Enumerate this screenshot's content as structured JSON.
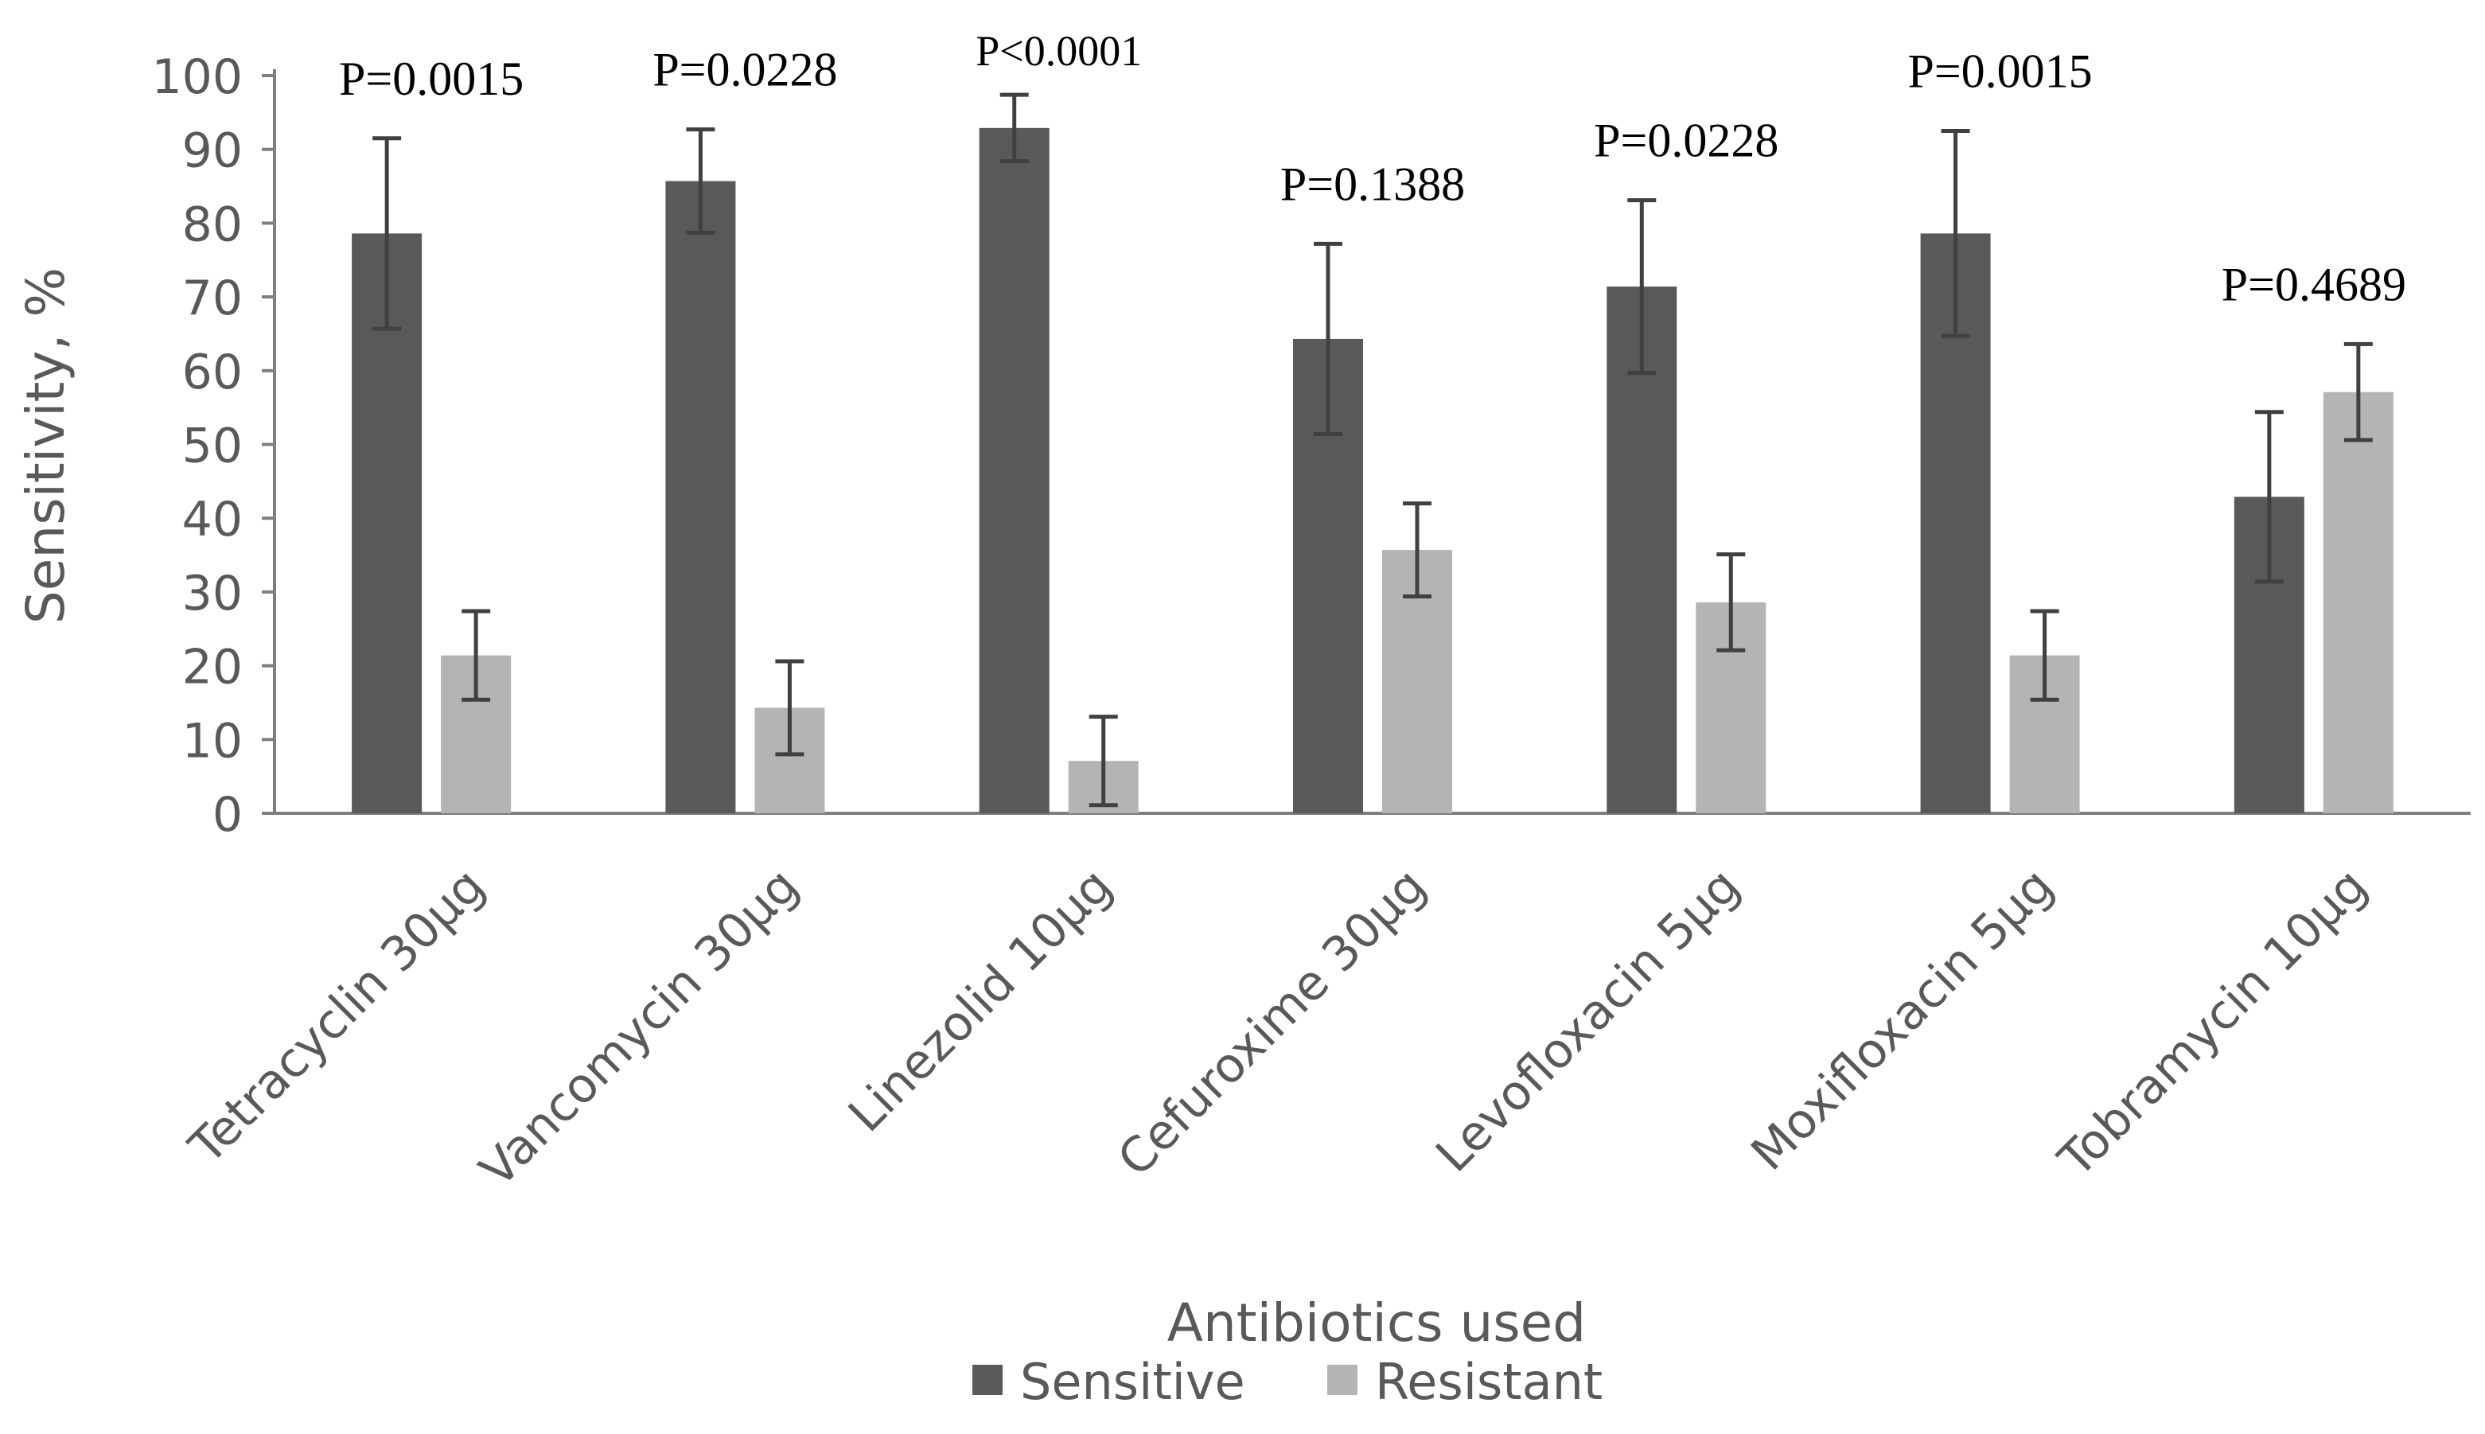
{
  "chart_data": {
    "type": "bar",
    "title": "",
    "xlabel": "Antibiotics used",
    "ylabel": "Sensitivity, %",
    "ylim": [
      0,
      100
    ],
    "yticks": [
      0,
      10,
      20,
      30,
      40,
      50,
      60,
      70,
      80,
      90,
      100
    ],
    "grid": false,
    "legend_position": "bottom",
    "categories": [
      "Tetracyclin 30µg",
      "Vancomycin 30µg",
      "Linezolid 10µg",
      "Cefuroxime 30µg",
      "Levofloxacin 5µg",
      "Moxifloxacin 5µg",
      "Tobramycin 10µg"
    ],
    "series": [
      {
        "name": "Sensitive",
        "color": "#595959",
        "values": [
          78.6,
          85.7,
          92.9,
          64.3,
          71.4,
          78.6,
          42.9
        ],
        "error": [
          12.9,
          7.0,
          4.5,
          12.9,
          11.7,
          13.9,
          11.5
        ]
      },
      {
        "name": "Resistant",
        "color": "#b4b4b4",
        "values": [
          21.4,
          14.3,
          7.1,
          35.7,
          28.6,
          21.4,
          57.1
        ],
        "error": [
          6.0,
          6.3,
          6.0,
          6.3,
          6.5,
          6.0,
          6.5
        ]
      }
    ],
    "annotations": [
      "P=0.0015",
      "P=0.0228",
      "P<0.0001",
      "P=0.1388",
      "P=0.0228",
      "P=0.0015",
      "P=0.4689"
    ]
  }
}
